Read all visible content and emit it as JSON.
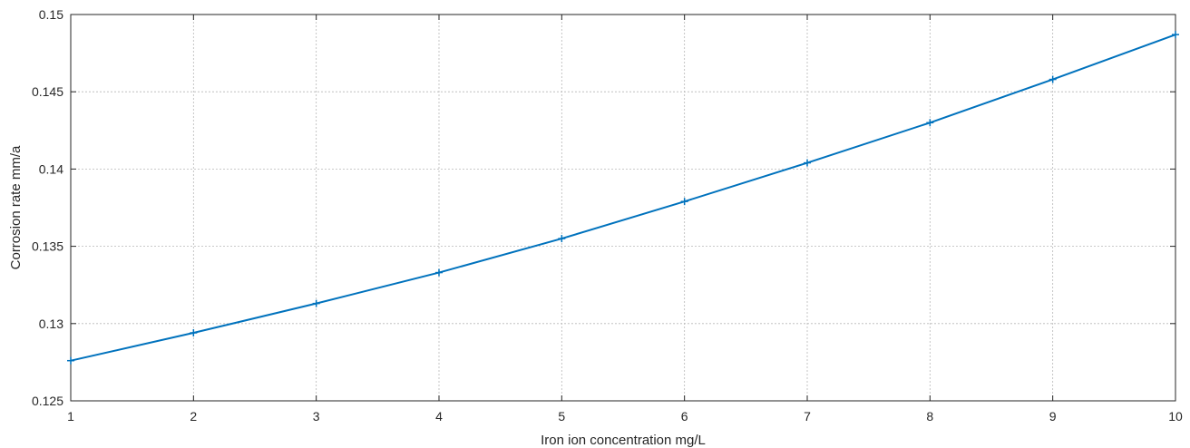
{
  "chart_data": {
    "type": "line",
    "title": "",
    "xlabel": "Iron ion concentration mg/L",
    "ylabel": "Corrosion rate mm/a",
    "xlim": [
      1,
      10
    ],
    "ylim": [
      0.125,
      0.15
    ],
    "xticks": [
      1,
      2,
      3,
      4,
      5,
      6,
      7,
      8,
      9,
      10
    ],
    "yticks": [
      0.125,
      0.13,
      0.135,
      0.14,
      0.145,
      0.15
    ],
    "ytick_labels": [
      "0.125",
      "0.13",
      "0.135",
      "0.14",
      "0.145",
      "0.15"
    ],
    "grid": true,
    "marker": "plus",
    "series": [
      {
        "color": "#0072BD",
        "x": [
          1,
          2,
          3,
          4,
          5,
          6,
          7,
          8,
          9,
          10
        ],
        "y": [
          0.1276,
          0.1294,
          0.1313,
          0.1333,
          0.1355,
          0.1379,
          0.1404,
          0.143,
          0.1458,
          0.1487
        ]
      }
    ]
  }
}
